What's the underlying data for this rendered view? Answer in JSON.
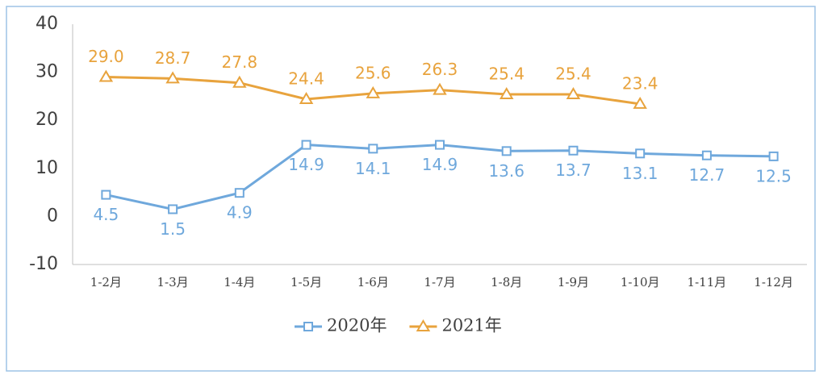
{
  "chart_data": {
    "type": "line",
    "categories": [
      "1-2月",
      "1-3月",
      "1-4月",
      "1-5月",
      "1-6月",
      "1-7月",
      "1-8月",
      "1-9月",
      "1-10月",
      "1-11月",
      "1-12月"
    ],
    "series": [
      {
        "name": "2020年",
        "color": "#6fa8dc",
        "marker": "square",
        "values": [
          4.5,
          1.5,
          4.9,
          14.9,
          14.1,
          14.9,
          13.6,
          13.7,
          13.1,
          12.7,
          12.5
        ],
        "value_labels": [
          "4.5",
          "1.5",
          "4.9",
          "14.9",
          "14.1",
          "14.9",
          "13.6",
          "13.7",
          "13.1",
          "12.7",
          "12.5"
        ]
      },
      {
        "name": "2021年",
        "color": "#e8a33d",
        "marker": "triangle",
        "values": [
          29.0,
          28.7,
          27.8,
          24.4,
          25.6,
          26.3,
          25.4,
          25.4,
          23.4,
          null,
          null
        ],
        "value_labels": [
          "29.0",
          "28.7",
          "27.8",
          "24.4",
          "25.6",
          "26.3",
          "25.4",
          "25.4",
          "23.4",
          null,
          null
        ]
      }
    ],
    "ylim": [
      -10,
      40
    ],
    "yticks": [
      -10,
      0,
      10,
      20,
      30,
      40
    ],
    "grid": false,
    "legend": "bottom"
  }
}
